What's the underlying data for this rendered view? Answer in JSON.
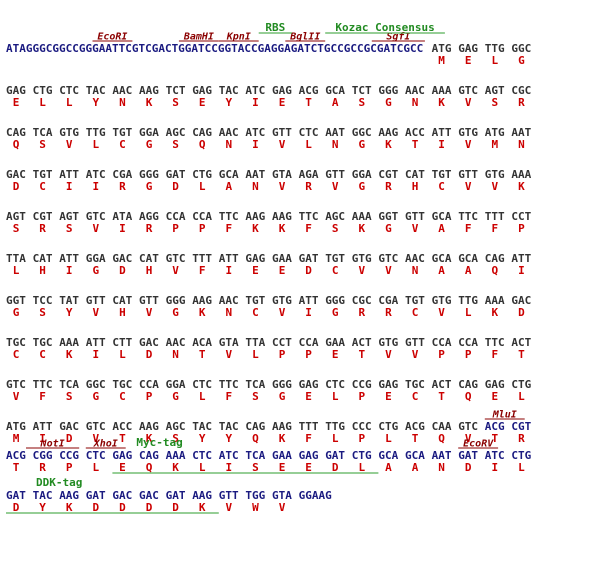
{
  "colors": {
    "vector": "#1a1a80",
    "insert": "#333333",
    "amino_acid": "#cc0000",
    "restriction_site": "#8b0000",
    "feature": "#228b22",
    "feature_line": "#2e9e2e"
  },
  "lines": [
    {
      "codons": [
        {
          "t": "ATAGGGCGGCCGGGAATTCGTCGACTGGATCCGGTACCGAGGAGATCTGCCGCCGCGATCGCC",
          "c": "vector"
        },
        {
          "t": "ATG",
          "c": "insert"
        },
        {
          "t": "GAG",
          "c": "insert"
        },
        {
          "t": "TTG",
          "c": "insert"
        },
        {
          "t": "GGC",
          "c": "insert"
        }
      ],
      "aa": [
        "",
        "M",
        "E",
        "L",
        "G"
      ]
    },
    {
      "codons": [
        {
          "t": "GAG",
          "c": "insert"
        },
        {
          "t": "CTG",
          "c": "insert"
        },
        {
          "t": "CTC",
          "c": "insert"
        },
        {
          "t": "TAC",
          "c": "insert"
        },
        {
          "t": "AAC",
          "c": "insert"
        },
        {
          "t": "AAG",
          "c": "insert"
        },
        {
          "t": "TCT",
          "c": "insert"
        },
        {
          "t": "GAG",
          "c": "insert"
        },
        {
          "t": "TAC",
          "c": "insert"
        },
        {
          "t": "ATC",
          "c": "insert"
        },
        {
          "t": "GAG",
          "c": "insert"
        },
        {
          "t": "ACG",
          "c": "insert"
        },
        {
          "t": "GCA",
          "c": "insert"
        },
        {
          "t": "TCT",
          "c": "insert"
        },
        {
          "t": "GGG",
          "c": "insert"
        },
        {
          "t": "AAC",
          "c": "insert"
        },
        {
          "t": "AAA",
          "c": "insert"
        },
        {
          "t": "GTC",
          "c": "insert"
        },
        {
          "t": "AGT",
          "c": "insert"
        },
        {
          "t": "CGC",
          "c": "insert"
        }
      ],
      "aa": [
        "E",
        "L",
        "L",
        "Y",
        "N",
        "K",
        "S",
        "E",
        "Y",
        "I",
        "E",
        "T",
        "A",
        "S",
        "G",
        "N",
        "K",
        "V",
        "S",
        "R"
      ]
    },
    {
      "codons": [
        {
          "t": "CAG",
          "c": "insert"
        },
        {
          "t": "TCA",
          "c": "insert"
        },
        {
          "t": "GTG",
          "c": "insert"
        },
        {
          "t": "TTG",
          "c": "insert"
        },
        {
          "t": "TGT",
          "c": "insert"
        },
        {
          "t": "GGA",
          "c": "insert"
        },
        {
          "t": "AGC",
          "c": "insert"
        },
        {
          "t": "CAG",
          "c": "insert"
        },
        {
          "t": "AAC",
          "c": "insert"
        },
        {
          "t": "ATC",
          "c": "insert"
        },
        {
          "t": "GTT",
          "c": "insert"
        },
        {
          "t": "CTC",
          "c": "insert"
        },
        {
          "t": "AAT",
          "c": "insert"
        },
        {
          "t": "GGC",
          "c": "insert"
        },
        {
          "t": "AAG",
          "c": "insert"
        },
        {
          "t": "ACC",
          "c": "insert"
        },
        {
          "t": "ATT",
          "c": "insert"
        },
        {
          "t": "GTG",
          "c": "insert"
        },
        {
          "t": "ATG",
          "c": "insert"
        },
        {
          "t": "AAT",
          "c": "insert"
        }
      ],
      "aa": [
        "Q",
        "S",
        "V",
        "L",
        "C",
        "G",
        "S",
        "Q",
        "N",
        "I",
        "V",
        "L",
        "N",
        "G",
        "K",
        "T",
        "I",
        "V",
        "M",
        "N"
      ]
    },
    {
      "codons": [
        {
          "t": "GAC",
          "c": "insert"
        },
        {
          "t": "TGT",
          "c": "insert"
        },
        {
          "t": "ATT",
          "c": "insert"
        },
        {
          "t": "ATC",
          "c": "insert"
        },
        {
          "t": "CGA",
          "c": "insert"
        },
        {
          "t": "GGG",
          "c": "insert"
        },
        {
          "t": "GAT",
          "c": "insert"
        },
        {
          "t": "CTG",
          "c": "insert"
        },
        {
          "t": "GCA",
          "c": "insert"
        },
        {
          "t": "AAT",
          "c": "insert"
        },
        {
          "t": "GTA",
          "c": "insert"
        },
        {
          "t": "AGA",
          "c": "insert"
        },
        {
          "t": "GTT",
          "c": "insert"
        },
        {
          "t": "GGA",
          "c": "insert"
        },
        {
          "t": "CGT",
          "c": "insert"
        },
        {
          "t": "CAT",
          "c": "insert"
        },
        {
          "t": "TGT",
          "c": "insert"
        },
        {
          "t": "GTT",
          "c": "insert"
        },
        {
          "t": "GTG",
          "c": "insert"
        },
        {
          "t": "AAA",
          "c": "insert"
        }
      ],
      "aa": [
        "D",
        "C",
        "I",
        "I",
        "R",
        "G",
        "D",
        "L",
        "A",
        "N",
        "V",
        "R",
        "V",
        "G",
        "R",
        "H",
        "C",
        "V",
        "V",
        "K"
      ]
    },
    {
      "codons": [
        {
          "t": "AGT",
          "c": "insert"
        },
        {
          "t": "CGT",
          "c": "insert"
        },
        {
          "t": "AGT",
          "c": "insert"
        },
        {
          "t": "GTC",
          "c": "insert"
        },
        {
          "t": "ATA",
          "c": "insert"
        },
        {
          "t": "AGG",
          "c": "insert"
        },
        {
          "t": "CCA",
          "c": "insert"
        },
        {
          "t": "CCA",
          "c": "insert"
        },
        {
          "t": "TTC",
          "c": "insert"
        },
        {
          "t": "AAG",
          "c": "insert"
        },
        {
          "t": "AAG",
          "c": "insert"
        },
        {
          "t": "TTC",
          "c": "insert"
        },
        {
          "t": "AGC",
          "c": "insert"
        },
        {
          "t": "AAA",
          "c": "insert"
        },
        {
          "t": "GGT",
          "c": "insert"
        },
        {
          "t": "GTT",
          "c": "insert"
        },
        {
          "t": "GCA",
          "c": "insert"
        },
        {
          "t": "TTC",
          "c": "insert"
        },
        {
          "t": "TTT",
          "c": "insert"
        },
        {
          "t": "CCT",
          "c": "insert"
        }
      ],
      "aa": [
        "S",
        "R",
        "S",
        "V",
        "I",
        "R",
        "P",
        "P",
        "F",
        "K",
        "K",
        "F",
        "S",
        "K",
        "G",
        "V",
        "A",
        "F",
        "F",
        "P"
      ]
    },
    {
      "codons": [
        {
          "t": "TTA",
          "c": "insert"
        },
        {
          "t": "CAT",
          "c": "insert"
        },
        {
          "t": "ATT",
          "c": "insert"
        },
        {
          "t": "GGA",
          "c": "insert"
        },
        {
          "t": "GAC",
          "c": "insert"
        },
        {
          "t": "CAT",
          "c": "insert"
        },
        {
          "t": "GTC",
          "c": "insert"
        },
        {
          "t": "TTT",
          "c": "insert"
        },
        {
          "t": "ATT",
          "c": "insert"
        },
        {
          "t": "GAG",
          "c": "insert"
        },
        {
          "t": "GAA",
          "c": "insert"
        },
        {
          "t": "GAT",
          "c": "insert"
        },
        {
          "t": "TGT",
          "c": "insert"
        },
        {
          "t": "GTG",
          "c": "insert"
        },
        {
          "t": "GTC",
          "c": "insert"
        },
        {
          "t": "AAC",
          "c": "insert"
        },
        {
          "t": "GCA",
          "c": "insert"
        },
        {
          "t": "GCA",
          "c": "insert"
        },
        {
          "t": "CAG",
          "c": "insert"
        },
        {
          "t": "ATT",
          "c": "insert"
        }
      ],
      "aa": [
        "L",
        "H",
        "I",
        "G",
        "D",
        "H",
        "V",
        "F",
        "I",
        "E",
        "E",
        "D",
        "C",
        "V",
        "V",
        "N",
        "A",
        "A",
        "Q",
        "I"
      ]
    },
    {
      "codons": [
        {
          "t": "GGT",
          "c": "insert"
        },
        {
          "t": "TCC",
          "c": "insert"
        },
        {
          "t": "TAT",
          "c": "insert"
        },
        {
          "t": "GTT",
          "c": "insert"
        },
        {
          "t": "CAT",
          "c": "insert"
        },
        {
          "t": "GTT",
          "c": "insert"
        },
        {
          "t": "GGG",
          "c": "insert"
        },
        {
          "t": "AAG",
          "c": "insert"
        },
        {
          "t": "AAC",
          "c": "insert"
        },
        {
          "t": "TGT",
          "c": "insert"
        },
        {
          "t": "GTG",
          "c": "insert"
        },
        {
          "t": "ATT",
          "c": "insert"
        },
        {
          "t": "GGG",
          "c": "insert"
        },
        {
          "t": "CGC",
          "c": "insert"
        },
        {
          "t": "CGA",
          "c": "insert"
        },
        {
          "t": "TGT",
          "c": "insert"
        },
        {
          "t": "GTG",
          "c": "insert"
        },
        {
          "t": "TTG",
          "c": "insert"
        },
        {
          "t": "AAA",
          "c": "insert"
        },
        {
          "t": "GAC",
          "c": "insert"
        }
      ],
      "aa": [
        "G",
        "S",
        "Y",
        "V",
        "H",
        "V",
        "G",
        "K",
        "N",
        "C",
        "V",
        "I",
        "G",
        "R",
        "R",
        "C",
        "V",
        "L",
        "K",
        "D"
      ]
    },
    {
      "codons": [
        {
          "t": "TGC",
          "c": "insert"
        },
        {
          "t": "TGC",
          "c": "insert"
        },
        {
          "t": "AAA",
          "c": "insert"
        },
        {
          "t": "ATT",
          "c": "insert"
        },
        {
          "t": "CTT",
          "c": "insert"
        },
        {
          "t": "GAC",
          "c": "insert"
        },
        {
          "t": "AAC",
          "c": "insert"
        },
        {
          "t": "ACA",
          "c": "insert"
        },
        {
          "t": "GTA",
          "c": "insert"
        },
        {
          "t": "TTA",
          "c": "insert"
        },
        {
          "t": "CCT",
          "c": "insert"
        },
        {
          "t": "CCA",
          "c": "insert"
        },
        {
          "t": "GAA",
          "c": "insert"
        },
        {
          "t": "ACT",
          "c": "insert"
        },
        {
          "t": "GTG",
          "c": "insert"
        },
        {
          "t": "GTT",
          "c": "insert"
        },
        {
          "t": "CCA",
          "c": "insert"
        },
        {
          "t": "CCA",
          "c": "insert"
        },
        {
          "t": "TTC",
          "c": "insert"
        },
        {
          "t": "ACT",
          "c": "insert"
        }
      ],
      "aa": [
        "C",
        "C",
        "K",
        "I",
        "L",
        "D",
        "N",
        "T",
        "V",
        "L",
        "P",
        "P",
        "E",
        "T",
        "V",
        "V",
        "P",
        "P",
        "F",
        "T"
      ]
    },
    {
      "codons": [
        {
          "t": "GTC",
          "c": "insert"
        },
        {
          "t": "TTC",
          "c": "insert"
        },
        {
          "t": "TCA",
          "c": "insert"
        },
        {
          "t": "GGC",
          "c": "insert"
        },
        {
          "t": "TGC",
          "c": "insert"
        },
        {
          "t": "CCA",
          "c": "insert"
        },
        {
          "t": "GGA",
          "c": "insert"
        },
        {
          "t": "CTC",
          "c": "insert"
        },
        {
          "t": "TTC",
          "c": "insert"
        },
        {
          "t": "TCA",
          "c": "insert"
        },
        {
          "t": "GGG",
          "c": "insert"
        },
        {
          "t": "GAG",
          "c": "insert"
        },
        {
          "t": "CTC",
          "c": "insert"
        },
        {
          "t": "CCG",
          "c": "insert"
        },
        {
          "t": "GAG",
          "c": "insert"
        },
        {
          "t": "TGC",
          "c": "insert"
        },
        {
          "t": "ACT",
          "c": "insert"
        },
        {
          "t": "CAG",
          "c": "insert"
        },
        {
          "t": "GAG",
          "c": "insert"
        },
        {
          "t": "CTG",
          "c": "insert"
        }
      ],
      "aa": [
        "V",
        "F",
        "S",
        "G",
        "C",
        "P",
        "G",
        "L",
        "F",
        "S",
        "G",
        "E",
        "L",
        "P",
        "E",
        "C",
        "T",
        "Q",
        "E",
        "L"
      ]
    },
    {
      "codons": [
        {
          "t": "ATG",
          "c": "insert"
        },
        {
          "t": "ATT",
          "c": "insert"
        },
        {
          "t": "GAC",
          "c": "insert"
        },
        {
          "t": "GTC",
          "c": "insert"
        },
        {
          "t": "ACC",
          "c": "insert"
        },
        {
          "t": "AAG",
          "c": "insert"
        },
        {
          "t": "AGC",
          "c": "insert"
        },
        {
          "t": "TAC",
          "c": "insert"
        },
        {
          "t": "TAC",
          "c": "insert"
        },
        {
          "t": "CAG",
          "c": "insert"
        },
        {
          "t": "AAG",
          "c": "insert"
        },
        {
          "t": "TTT",
          "c": "insert"
        },
        {
          "t": "TTG",
          "c": "insert"
        },
        {
          "t": "CCC",
          "c": "insert"
        },
        {
          "t": "CTG",
          "c": "insert"
        },
        {
          "t": "ACG",
          "c": "insert"
        },
        {
          "t": "CAA",
          "c": "insert"
        },
        {
          "t": "GTC",
          "c": "insert"
        },
        {
          "t": "ACG",
          "c": "vector"
        },
        {
          "t": "CGT",
          "c": "vector"
        }
      ],
      "aa": [
        "M",
        "I",
        "D",
        "V",
        "T",
        "K",
        "S",
        "Y",
        "Y",
        "Q",
        "K",
        "F",
        "L",
        "P",
        "L",
        "T",
        "Q",
        "V",
        "T",
        "R"
      ]
    },
    {
      "codons": [
        {
          "t": "ACG",
          "c": "vector"
        },
        {
          "t": "CGG",
          "c": "vector"
        },
        {
          "t": "CCG",
          "c": "vector"
        },
        {
          "t": "CTC",
          "c": "vector"
        },
        {
          "t": "GAG",
          "c": "vector"
        },
        {
          "t": "CAG",
          "c": "vector"
        },
        {
          "t": "AAA",
          "c": "vector"
        },
        {
          "t": "CTC",
          "c": "vector"
        },
        {
          "t": "ATC",
          "c": "vector"
        },
        {
          "t": "TCA",
          "c": "vector"
        },
        {
          "t": "GAA",
          "c": "vector"
        },
        {
          "t": "GAG",
          "c": "vector"
        },
        {
          "t": "GAT",
          "c": "vector"
        },
        {
          "t": "CTG",
          "c": "vector"
        },
        {
          "t": "GCA",
          "c": "vector"
        },
        {
          "t": "GCA",
          "c": "vector"
        },
        {
          "t": "AAT",
          "c": "vector"
        },
        {
          "t": "GAT",
          "c": "vector"
        },
        {
          "t": "ATC",
          "c": "vector"
        },
        {
          "t": "CTG",
          "c": "vector"
        }
      ],
      "aa": [
        "T",
        "R",
        "P",
        "L",
        "E",
        "Q",
        "K",
        "L",
        "I",
        "S",
        "E",
        "E",
        "D",
        "L",
        "A",
        "A",
        "N",
        "D",
        "I",
        "L"
      ]
    },
    {
      "codons": [
        {
          "t": "GAT",
          "c": "vector"
        },
        {
          "t": "TAC",
          "c": "vector"
        },
        {
          "t": "AAG",
          "c": "vector"
        },
        {
          "t": "GAT",
          "c": "vector"
        },
        {
          "t": "GAC",
          "c": "vector"
        },
        {
          "t": "GAC",
          "c": "vector"
        },
        {
          "t": "GAT",
          "c": "vector"
        },
        {
          "t": "AAG",
          "c": "vector"
        },
        {
          "t": "GTT",
          "c": "vector"
        },
        {
          "t": "TGG",
          "c": "vector"
        },
        {
          "t": "GTA",
          "c": "vector"
        },
        {
          "t": "GGAAG",
          "c": "vector"
        }
      ],
      "aa": [
        "D",
        "Y",
        "K",
        "D",
        "D",
        "D",
        "D",
        "K",
        "V",
        "W",
        "V",
        ""
      ]
    }
  ],
  "restriction_sites": [
    {
      "line": 0,
      "label": "EcoRI",
      "start": 13,
      "len": 6
    },
    {
      "line": 0,
      "label": "BamHI",
      "start": 26,
      "len": 6
    },
    {
      "line": 0,
      "label": "KpnI",
      "start": 32,
      "len": 6
    },
    {
      "line": 0,
      "label": "BglII",
      "start": 42,
      "len": 6
    },
    {
      "line": 0,
      "label": "SgfI",
      "start": 55,
      "len": 8
    },
    {
      "line": 9,
      "label": "MluI",
      "start": 72,
      "len": 6
    },
    {
      "line": 10,
      "label": "NotI",
      "start": 3,
      "len": 8
    },
    {
      "line": 10,
      "label": "XhoI",
      "start": 12,
      "len": 6
    },
    {
      "line": 10,
      "label": "EcoRV",
      "start": 68,
      "len": 6
    }
  ],
  "features": [
    {
      "line": 0,
      "label": "RBS",
      "start": 38,
      "len": 5
    },
    {
      "line": 0,
      "label": "Kozac Consensus",
      "start": 48,
      "len": 18
    },
    {
      "line": 10,
      "label": "Myc-tag",
      "start": 16,
      "len": 40
    },
    {
      "line": 11,
      "label": "DDK-tag",
      "start": 0,
      "len": 32
    }
  ]
}
